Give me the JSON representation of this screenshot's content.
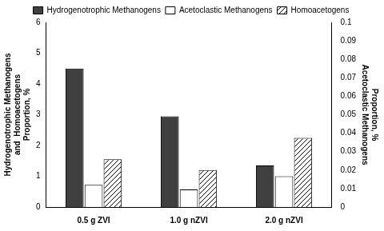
{
  "chart_data": {
    "type": "bar",
    "categories": [
      "0.5 g ZVI",
      "1.0 g nZVI",
      "2.0 g nZVI"
    ],
    "series": [
      {
        "name": "Hydrogenotrophic Methanogens",
        "color": "#404040",
        "values": [
          4.5,
          2.95,
          1.35
        ]
      },
      {
        "name": "Acetoclastic Methanogens",
        "color": "#ffffff",
        "values": [
          0.012,
          0.0095,
          0.0167
        ],
        "axis": "y2"
      },
      {
        "name": "Homoacetogens",
        "color": "#ffffff",
        "values": [
          1.55,
          1.2,
          2.25
        ]
      }
    ],
    "y_label": [
      "Hydrogenotrophic Methanogens",
      "and  Homoacetogens",
      "Proportion, %"
    ],
    "y2_label": [
      "Proportion, %",
      "Acetoclastic Methanogens"
    ],
    "ylim": [
      0,
      6
    ],
    "yticks": [
      0,
      1,
      2,
      3,
      4,
      5,
      6
    ],
    "y2lim": [
      0,
      0.1
    ],
    "y2ticks": [
      0,
      0.01,
      0.02,
      0.03,
      0.04,
      0.05,
      0.06,
      0.07,
      0.08,
      0.09,
      0.1
    ],
    "grid": false,
    "legend": "top"
  }
}
